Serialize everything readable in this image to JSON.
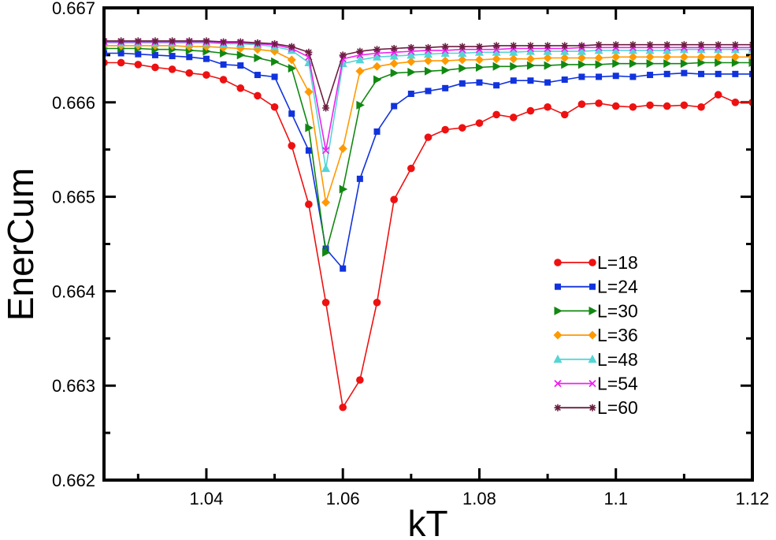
{
  "chart_data": {
    "type": "line",
    "title": "",
    "xlabel": "kT",
    "ylabel": "EnerCum",
    "xlim": [
      1.025,
      1.12
    ],
    "ylim": [
      0.662,
      0.667
    ],
    "xticks": [
      1.04,
      1.06,
      1.08,
      1.1,
      1.12
    ],
    "xtick_labels": [
      "1.04",
      "1.06",
      "1.08",
      "1.1",
      "1.12"
    ],
    "yticks": [
      0.662,
      0.663,
      0.664,
      0.665,
      0.666,
      0.667
    ],
    "ytick_labels": [
      "0.662",
      "0.663",
      "0.664",
      "0.665",
      "0.666",
      "0.667"
    ],
    "grid": false,
    "legend_position": "right-center",
    "x": [
      1.025,
      1.0275,
      1.03,
      1.0325,
      1.035,
      1.0375,
      1.04,
      1.0425,
      1.045,
      1.0475,
      1.05,
      1.0525,
      1.055,
      1.0575,
      1.06,
      1.0625,
      1.065,
      1.0675,
      1.07,
      1.0725,
      1.075,
      1.0775,
      1.08,
      1.0825,
      1.085,
      1.0875,
      1.09,
      1.0925,
      1.095,
      1.0975,
      1.1,
      1.1025,
      1.105,
      1.1075,
      1.11,
      1.1125,
      1.115,
      1.1175,
      1.12
    ],
    "series": [
      {
        "name": "L=18",
        "color": "#ee1111",
        "marker": "circle",
        "values": [
          0.66642,
          0.66642,
          0.6664,
          0.66637,
          0.66635,
          0.66631,
          0.66629,
          0.66624,
          0.66615,
          0.66607,
          0.66595,
          0.66554,
          0.66492,
          0.66388,
          0.66277,
          0.66306,
          0.66388,
          0.66497,
          0.6653,
          0.66563,
          0.66571,
          0.66573,
          0.66578,
          0.66587,
          0.66584,
          0.66591,
          0.66595,
          0.66587,
          0.66598,
          0.66599,
          0.66596,
          0.66595,
          0.66597,
          0.66596,
          0.66597,
          0.66595,
          0.66608,
          0.666,
          0.666
        ]
      },
      {
        "name": "L=24",
        "color": "#1133dd",
        "marker": "square",
        "values": [
          0.66652,
          0.66652,
          0.66651,
          0.6665,
          0.66649,
          0.66648,
          0.66646,
          0.6664,
          0.66639,
          0.66629,
          0.66627,
          0.66588,
          0.66549,
          0.66445,
          0.66424,
          0.66519,
          0.66569,
          0.66596,
          0.66609,
          0.66612,
          0.66615,
          0.6662,
          0.66621,
          0.66618,
          0.66623,
          0.66623,
          0.66621,
          0.66624,
          0.66627,
          0.66627,
          0.66628,
          0.66627,
          0.66629,
          0.6663,
          0.66631,
          0.6663,
          0.6663,
          0.6663,
          0.6663
        ]
      },
      {
        "name": "L=30",
        "color": "#118811",
        "marker": "triangle-right",
        "values": [
          0.66657,
          0.66657,
          0.66657,
          0.66656,
          0.66656,
          0.66655,
          0.66654,
          0.66652,
          0.6665,
          0.66647,
          0.66643,
          0.66636,
          0.66573,
          0.66441,
          0.66508,
          0.66597,
          0.66624,
          0.66631,
          0.66632,
          0.66633,
          0.66634,
          0.66636,
          0.66637,
          0.66638,
          0.66638,
          0.66639,
          0.66639,
          0.6664,
          0.6664,
          0.6664,
          0.66641,
          0.66641,
          0.66641,
          0.66641,
          0.66641,
          0.66642,
          0.66642,
          0.66642,
          0.66642
        ]
      },
      {
        "name": "L=36",
        "color": "#ff9900",
        "marker": "diamond",
        "values": [
          0.6666,
          0.6666,
          0.6666,
          0.6666,
          0.6666,
          0.66659,
          0.66659,
          0.66658,
          0.66657,
          0.66656,
          0.66654,
          0.66645,
          0.66611,
          0.66494,
          0.66551,
          0.66633,
          0.66638,
          0.66641,
          0.66643,
          0.66644,
          0.66644,
          0.66645,
          0.66645,
          0.66646,
          0.66646,
          0.66646,
          0.66647,
          0.66647,
          0.66647,
          0.66647,
          0.66648,
          0.66648,
          0.66648,
          0.66648,
          0.66648,
          0.66648,
          0.66648,
          0.66648,
          0.66648
        ]
      },
      {
        "name": "L=48",
        "color": "#55d5d5",
        "marker": "triangle-up",
        "values": [
          0.66663,
          0.66663,
          0.66663,
          0.66663,
          0.66663,
          0.66663,
          0.66663,
          0.66662,
          0.66662,
          0.66661,
          0.66659,
          0.66655,
          0.66642,
          0.6653,
          0.66641,
          0.66645,
          0.66648,
          0.66649,
          0.6665,
          0.66651,
          0.66652,
          0.66652,
          0.66653,
          0.66653,
          0.66653,
          0.66654,
          0.66654,
          0.66654,
          0.66654,
          0.66655,
          0.66655,
          0.66655,
          0.66655,
          0.66655,
          0.66656,
          0.66656,
          0.66656,
          0.66656,
          0.66656
        ]
      },
      {
        "name": "L=54",
        "color": "#ee22ee",
        "marker": "x",
        "values": [
          0.66664,
          0.66664,
          0.66664,
          0.66664,
          0.66664,
          0.66664,
          0.66664,
          0.66663,
          0.66663,
          0.66662,
          0.66661,
          0.66657,
          0.66648,
          0.66549,
          0.66646,
          0.6665,
          0.66652,
          0.66653,
          0.66654,
          0.66655,
          0.66655,
          0.66656,
          0.66656,
          0.66656,
          0.66657,
          0.66657,
          0.66657,
          0.66657,
          0.66658,
          0.66658,
          0.66658,
          0.66658,
          0.66658,
          0.66658,
          0.66658,
          0.66658,
          0.66658,
          0.66658,
          0.66658
        ]
      },
      {
        "name": "L=60",
        "color": "#6b1f3f",
        "marker": "star",
        "values": [
          0.66665,
          0.66665,
          0.66665,
          0.66665,
          0.66665,
          0.66665,
          0.66665,
          0.66664,
          0.66664,
          0.66663,
          0.66662,
          0.66659,
          0.66653,
          0.66594,
          0.6665,
          0.66654,
          0.66656,
          0.66657,
          0.66658,
          0.66658,
          0.66659,
          0.66659,
          0.66659,
          0.6666,
          0.6666,
          0.6666,
          0.6666,
          0.6666,
          0.6666,
          0.66661,
          0.66661,
          0.66661,
          0.66661,
          0.66661,
          0.66661,
          0.66661,
          0.66661,
          0.66661,
          0.66661
        ]
      }
    ]
  }
}
